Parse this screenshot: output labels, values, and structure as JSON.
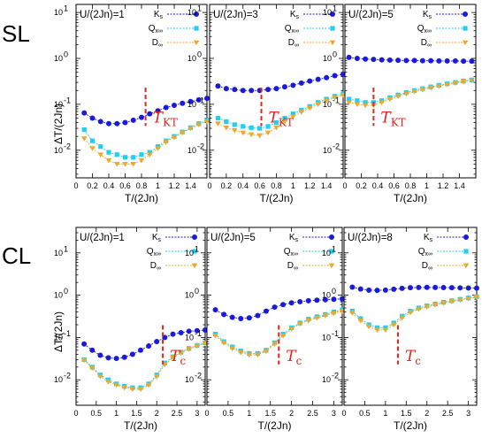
{
  "row_labels": [
    "SL",
    "CL"
  ],
  "ylabel": "ΔT/(2Jn)",
  "xlabel": "T/(2Jn)",
  "y_tick_labels": {
    "10": "10",
    "1": "10",
    "0.1": "10",
    "0.01": "10"
  },
  "colors": {
    "Ks": "#1a1adc",
    "Qx": "#1fd0f0",
    "D": "#f0a82a",
    "ann": "#e0231f"
  },
  "legend": [
    "K",
    "Q",
    "D"
  ],
  "chart_data": [
    {
      "type": "scatter",
      "yscale": "log",
      "xlim": [
        0,
        1.6
      ],
      "ylim": [
        0.0025,
        15
      ],
      "xticks": [
        0,
        0.2,
        0.4,
        0.6,
        0.8,
        1,
        1.2,
        1.4
      ],
      "xtick_labels": [
        "0",
        "0.2",
        "0.4",
        "0.6",
        "0.8",
        "1",
        "1.2",
        "1.4"
      ],
      "title": "U/(2Jn)=1",
      "annotation": {
        "text": "T",
        "sub": "KT",
        "x": 0.85
      },
      "x": [
        0.1,
        0.2,
        0.3,
        0.4,
        0.5,
        0.6,
        0.7,
        0.8,
        0.9,
        1.0,
        1.1,
        1.2,
        1.3,
        1.4,
        1.5,
        1.6
      ],
      "series": [
        {
          "name": "Ks",
          "values": [
            0.065,
            0.05,
            0.042,
            0.038,
            0.038,
            0.04,
            0.045,
            0.052,
            0.062,
            0.072,
            0.085,
            0.095,
            0.105,
            0.115,
            0.125,
            0.135
          ]
        },
        {
          "name": "Qx",
          "values": [
            0.028,
            0.016,
            0.012,
            0.009,
            0.008,
            0.007,
            0.007,
            0.008,
            0.009,
            0.012,
            0.016,
            0.02,
            0.025,
            0.031,
            0.038,
            0.045
          ]
        },
        {
          "name": "D",
          "values": [
            0.018,
            0.011,
            0.008,
            0.006,
            0.005,
            0.005,
            0.005,
            0.006,
            0.008,
            0.011,
            0.015,
            0.019,
            0.024,
            0.03,
            0.036,
            0.042
          ]
        }
      ]
    },
    {
      "type": "scatter",
      "yscale": "log",
      "xlim": [
        0,
        1.6
      ],
      "ylim": [
        0.0025,
        15
      ],
      "xticks": [
        0,
        0.2,
        0.4,
        0.6,
        0.8,
        1,
        1.2,
        1.4
      ],
      "xtick_labels": [
        "0",
        "0.2",
        "0.4",
        "0.6",
        "0.8",
        "1",
        "1.2",
        "1.4"
      ],
      "title": "U/(2Jn)=3",
      "annotation": {
        "text": "T",
        "sub": "KT",
        "x": 0.62
      },
      "x": [
        0.1,
        0.2,
        0.3,
        0.4,
        0.5,
        0.6,
        0.7,
        0.8,
        0.9,
        1.0,
        1.1,
        1.2,
        1.3,
        1.4,
        1.5,
        1.6
      ],
      "series": [
        {
          "name": "Ks",
          "values": [
            0.25,
            0.22,
            0.21,
            0.2,
            0.2,
            0.2,
            0.21,
            0.22,
            0.24,
            0.26,
            0.29,
            0.32,
            0.35,
            0.38,
            0.42,
            0.45
          ]
        },
        {
          "name": "Qx",
          "values": [
            0.05,
            0.042,
            0.036,
            0.033,
            0.031,
            0.03,
            0.033,
            0.04,
            0.05,
            0.062,
            0.075,
            0.09,
            0.11,
            0.13,
            0.15,
            0.17
          ]
        },
        {
          "name": "D",
          "values": [
            0.038,
            0.031,
            0.027,
            0.024,
            0.022,
            0.021,
            0.024,
            0.031,
            0.042,
            0.054,
            0.068,
            0.083,
            0.1,
            0.12,
            0.14,
            0.16
          ]
        }
      ]
    },
    {
      "type": "scatter",
      "yscale": "log",
      "xlim": [
        0,
        1.6
      ],
      "ylim": [
        0.0025,
        15
      ],
      "xticks": [
        0,
        0.2,
        0.4,
        0.6,
        0.8,
        1,
        1.2,
        1.4
      ],
      "xtick_labels": [
        "0",
        "0.2",
        "0.4",
        "0.6",
        "0.8",
        "1",
        "1.2",
        "1.4"
      ],
      "title": "U/(2Jn)=5",
      "annotation": {
        "text": "T",
        "sub": "KT",
        "x": 0.35
      },
      "x": [
        0.05,
        0.15,
        0.25,
        0.35,
        0.45,
        0.55,
        0.65,
        0.75,
        0.85,
        0.95,
        1.05,
        1.15,
        1.25,
        1.35,
        1.45,
        1.55
      ],
      "series": [
        {
          "name": "Ks",
          "values": [
            1.05,
            1.0,
            0.97,
            0.95,
            0.93,
            0.92,
            0.91,
            0.9,
            0.9,
            0.89,
            0.89,
            0.88,
            0.88,
            0.88,
            0.87,
            0.87
          ]
        },
        {
          "name": "Qx",
          "values": [
            0.13,
            0.12,
            0.11,
            0.11,
            0.12,
            0.14,
            0.16,
            0.18,
            0.2,
            0.22,
            0.24,
            0.26,
            0.28,
            0.3,
            0.32,
            0.34
          ]
        },
        {
          "name": "D",
          "values": [
            0.11,
            0.1,
            0.095,
            0.095,
            0.11,
            0.13,
            0.15,
            0.17,
            0.19,
            0.21,
            0.23,
            0.25,
            0.27,
            0.29,
            0.31,
            0.33
          ]
        }
      ]
    },
    {
      "type": "scatter",
      "yscale": "log",
      "xlim": [
        0,
        3.2
      ],
      "ylim": [
        0.0025,
        40
      ],
      "xticks": [
        0,
        0.5,
        1,
        1.5,
        2,
        2.5,
        3
      ],
      "xtick_labels": [
        "0",
        "0.5",
        "1",
        "1.5",
        "2",
        "2.5",
        "3"
      ],
      "title": "U/(2Jn)=1",
      "annotation": {
        "text": "T",
        "sub": "c",
        "x": 2.15
      },
      "x": [
        0.2,
        0.4,
        0.6,
        0.8,
        1.0,
        1.2,
        1.4,
        1.6,
        1.8,
        2.0,
        2.2,
        2.4,
        2.6,
        2.8,
        3.0,
        3.2
      ],
      "series": [
        {
          "name": "Ks",
          "values": [
            0.07,
            0.05,
            0.038,
            0.033,
            0.032,
            0.034,
            0.04,
            0.05,
            0.063,
            0.08,
            0.1,
            0.12,
            0.13,
            0.14,
            0.145,
            0.15
          ]
        },
        {
          "name": "Qx",
          "values": [
            0.03,
            0.02,
            0.013,
            0.01,
            0.008,
            0.007,
            0.0065,
            0.0065,
            0.008,
            0.013,
            0.025,
            0.035,
            0.045,
            0.055,
            0.065,
            0.075
          ]
        },
        {
          "name": "D",
          "values": [
            0.029,
            0.019,
            0.012,
            0.009,
            0.0075,
            0.0065,
            0.006,
            0.006,
            0.0075,
            0.012,
            0.023,
            0.033,
            0.043,
            0.053,
            0.063,
            0.072
          ]
        }
      ]
    },
    {
      "type": "scatter",
      "yscale": "log",
      "xlim": [
        0,
        3.2
      ],
      "ylim": [
        0.0025,
        40
      ],
      "xticks": [
        0,
        0.5,
        1,
        1.5,
        2,
        2.5,
        3
      ],
      "xtick_labels": [
        "0",
        "0.5",
        "1",
        "1.5",
        "2",
        "2.5",
        "3"
      ],
      "title": "U/(2Jn)=5",
      "annotation": {
        "text": "T",
        "sub": "c",
        "x": 1.7
      },
      "x": [
        0.2,
        0.4,
        0.6,
        0.8,
        1.0,
        1.2,
        1.4,
        1.6,
        1.8,
        2.0,
        2.2,
        2.4,
        2.6,
        2.8,
        3.0,
        3.2
      ],
      "series": [
        {
          "name": "Ks",
          "values": [
            0.45,
            0.35,
            0.3,
            0.28,
            0.29,
            0.33,
            0.42,
            0.52,
            0.6,
            0.66,
            0.7,
            0.74,
            0.76,
            0.78,
            0.8,
            0.82
          ]
        },
        {
          "name": "Qx",
          "values": [
            0.12,
            0.08,
            0.06,
            0.048,
            0.042,
            0.042,
            0.05,
            0.075,
            0.12,
            0.17,
            0.22,
            0.27,
            0.31,
            0.35,
            0.4,
            0.45
          ]
        },
        {
          "name": "D",
          "values": [
            0.11,
            0.075,
            0.055,
            0.044,
            0.039,
            0.039,
            0.047,
            0.07,
            0.11,
            0.16,
            0.21,
            0.25,
            0.29,
            0.33,
            0.37,
            0.42
          ]
        }
      ]
    },
    {
      "type": "scatter",
      "yscale": "log",
      "xlim": [
        0,
        3.2
      ],
      "ylim": [
        0.0025,
        40
      ],
      "xticks": [
        0,
        0.5,
        1,
        1.5,
        2,
        2.5,
        3
      ],
      "xtick_labels": [
        "0",
        "0.5",
        "1",
        "1.5",
        "2",
        "2.5",
        "3"
      ],
      "title": "U/(2Jn)=8",
      "annotation": {
        "text": "T",
        "sub": "c",
        "x": 1.3
      },
      "x": [
        0.2,
        0.4,
        0.6,
        0.8,
        1.0,
        1.2,
        1.4,
        1.6,
        1.8,
        2.0,
        2.2,
        2.4,
        2.6,
        2.8,
        3.0,
        3.2
      ],
      "series": [
        {
          "name": "Ks",
          "values": [
            1.55,
            1.4,
            1.32,
            1.3,
            1.32,
            1.38,
            1.45,
            1.5,
            1.52,
            1.53,
            1.52,
            1.51,
            1.5,
            1.49,
            1.48,
            1.47
          ]
        },
        {
          "name": "Qx",
          "values": [
            0.42,
            0.28,
            0.2,
            0.17,
            0.17,
            0.22,
            0.32,
            0.42,
            0.5,
            0.56,
            0.62,
            0.68,
            0.74,
            0.8,
            0.86,
            0.92
          ]
        },
        {
          "name": "D",
          "values": [
            0.38,
            0.25,
            0.18,
            0.15,
            0.15,
            0.2,
            0.29,
            0.39,
            0.47,
            0.53,
            0.59,
            0.65,
            0.71,
            0.77,
            0.83,
            0.89
          ]
        }
      ]
    }
  ]
}
